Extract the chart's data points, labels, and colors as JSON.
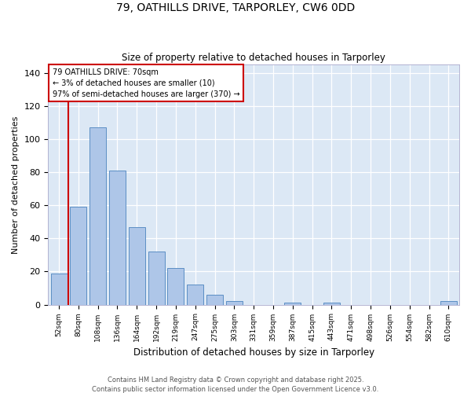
{
  "title_line1": "79, OATHILLS DRIVE, TARPORLEY, CW6 0DD",
  "title_line2": "Size of property relative to detached houses in Tarporley",
  "xlabel": "Distribution of detached houses by size in Tarporley",
  "ylabel": "Number of detached properties",
  "categories": [
    "52sqm",
    "80sqm",
    "108sqm",
    "136sqm",
    "164sqm",
    "192sqm",
    "219sqm",
    "247sqm",
    "275sqm",
    "303sqm",
    "331sqm",
    "359sqm",
    "387sqm",
    "415sqm",
    "443sqm",
    "471sqm",
    "498sqm",
    "526sqm",
    "554sqm",
    "582sqm",
    "610sqm"
  ],
  "values": [
    19,
    59,
    107,
    81,
    47,
    32,
    22,
    12,
    6,
    2,
    0,
    0,
    1,
    0,
    1,
    0,
    0,
    0,
    0,
    0,
    2
  ],
  "bar_color": "#aec6e8",
  "bar_edge_color": "#5b8ec4",
  "vline_color": "#cc0000",
  "annotation_line1": "79 OATHILLS DRIVE: 70sqm",
  "annotation_line2": "← 3% of detached houses are smaller (10)",
  "annotation_line3": "97% of semi-detached houses are larger (370) →",
  "annotation_box_color": "#cc0000",
  "ylim": [
    0,
    145
  ],
  "yticks": [
    0,
    20,
    40,
    60,
    80,
    100,
    120,
    140
  ],
  "background_color": "#dce8f5",
  "footer_line1": "Contains HM Land Registry data © Crown copyright and database right 2025.",
  "footer_line2": "Contains public sector information licensed under the Open Government Licence v3.0."
}
